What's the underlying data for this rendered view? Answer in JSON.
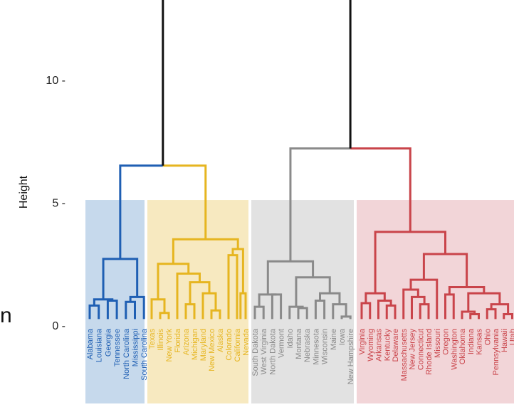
{
  "chart_data": {
    "type": "dendrogram",
    "ylabel": "Height",
    "ylim": [
      -0.5,
      14
    ],
    "yticks": [
      0,
      5,
      10
    ],
    "yticklabels": [
      "0 -",
      "5 -",
      "10 -"
    ],
    "clusters": [
      {
        "name": "cluster-1",
        "color": "#1f5fb3",
        "fill": "#c6d9ec",
        "leaves": [
          "Alabama",
          "Louisiana",
          "Georgia",
          "Tennessee",
          "North Carolina",
          "Mississippi",
          "South Carolina"
        ]
      },
      {
        "name": "cluster-2",
        "color": "#e6b520",
        "fill": "#f7e9c0",
        "leaves": [
          "Texas",
          "Illinois",
          "New York",
          "Florida",
          "Arizona",
          "Michigan",
          "Maryland",
          "New Mexico",
          "Alaska",
          "Colorado",
          "California",
          "Nevada"
        ]
      },
      {
        "name": "cluster-3",
        "color": "#8a8a8a",
        "fill": "#e2e2e2",
        "leaves": [
          "South Dakota",
          "West Virginia",
          "North Dakota",
          "Vermont",
          "Idaho",
          "Montana",
          "Nebraska",
          "Minnesota",
          "Wisconsin",
          "Maine",
          "Iowa",
          "New Hampshire"
        ]
      },
      {
        "name": "cluster-4",
        "color": "#c9444a",
        "fill": "#f2d5d8",
        "leaves": [
          "Virginia",
          "Wyoming",
          "Arkansas",
          "Kentucky",
          "Delaware",
          "Massachusetts",
          "New Jersey",
          "Connecticut",
          "Rhode Island",
          "Missouri",
          "Oregon",
          "Washington",
          "Oklahoma",
          "Indiana",
          "Kansas",
          "Ohio",
          "Pennsylvania",
          "Hawaii",
          "Utah"
        ]
      }
    ],
    "root_color": "#111111",
    "merge_heights": {
      "root": 13.6,
      "clusters_1_2": 6.5,
      "clusters_3_4": 7.2,
      "cluster_1": 2.7,
      "cluster_2": 3.5,
      "cluster_3": 2.6,
      "cluster_4": 3.8
    },
    "rect_height": 5.1
  },
  "edge_glyph": "n"
}
